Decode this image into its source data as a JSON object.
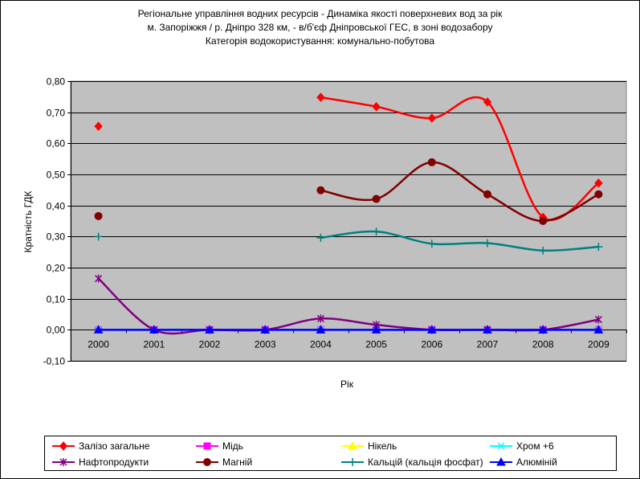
{
  "title_lines": [
    "Регіональне управління водних ресурсів - Динаміка якості поверхневих вод за рік",
    "м. Запоріжжя / р. Дніпро 328 км, - в/б'єф Дніпровської ГЕС, в зоні водозабору",
    "Категорія водокористування: комунально-побутова"
  ],
  "chart_data": {
    "type": "line",
    "title": "Регіональне управління водних ресурсів - Динаміка якості поверхневих вод за рік м. Запоріжжя / р. Дніпро 328 км, - в/б'єф Дніпровської ГЕС, в зоні водозабору Категорія водокористування: комунально-побутова",
    "xlabel": "Рік",
    "ylabel": "Кратність ГДК",
    "categories": [
      "2000",
      "2001",
      "2002",
      "2003",
      "2004",
      "2005",
      "2006",
      "2007",
      "2008",
      "2009"
    ],
    "ylim": [
      -0.1,
      0.8
    ],
    "yticks": [
      -0.1,
      0.0,
      0.1,
      0.2,
      0.3,
      0.4,
      0.5,
      0.6,
      0.7,
      0.8
    ],
    "ytick_labels": [
      "-0,10",
      "0,00",
      "0,10",
      "0,20",
      "0,30",
      "0,40",
      "0,50",
      "0,60",
      "0,70",
      "0,80"
    ],
    "grid": true,
    "plot_background": "#c0c0c0",
    "smooth": true,
    "legend_position": "bottom",
    "series": [
      {
        "name": "Залізо загальне",
        "color": "#ff0000",
        "marker": "diamond",
        "values": [
          0.655,
          null,
          null,
          null,
          0.748,
          0.718,
          0.681,
          0.733,
          0.362,
          0.472
        ]
      },
      {
        "name": "Мідь",
        "color": "#ff00ff",
        "marker": "square",
        "values": [
          0.0,
          0.0,
          0.0,
          0.0,
          0.0,
          0.0,
          0.0,
          0.0,
          0.0,
          0.0
        ]
      },
      {
        "name": "Нікель",
        "color": "#ffff00",
        "marker": "triangle",
        "values": [
          0.0,
          null,
          null,
          null,
          null,
          0.0,
          null,
          null,
          null,
          null
        ]
      },
      {
        "name": "Хром +6",
        "color": "#00ffff",
        "marker": "x",
        "values": [
          0.0,
          0.0,
          0.0,
          0.0,
          0.0,
          0.0,
          0.0,
          0.0,
          0.0,
          0.0
        ]
      },
      {
        "name": "Нафтопродукти",
        "color": "#800080",
        "marker": "star",
        "values": [
          0.165,
          0.0,
          0.0,
          0.0,
          0.036,
          0.016,
          0.0,
          0.0,
          0.0,
          0.033
        ]
      },
      {
        "name": "Магній",
        "color": "#800000",
        "marker": "circle",
        "values": [
          0.366,
          null,
          null,
          null,
          0.449,
          0.421,
          0.539,
          0.436,
          0.35,
          0.436
        ]
      },
      {
        "name": "Кальцій (кальція фосфат)",
        "color": "#008080",
        "marker": "plus",
        "values": [
          0.3,
          null,
          null,
          null,
          0.296,
          0.316,
          0.277,
          0.279,
          0.255,
          0.267
        ]
      },
      {
        "name": "Алюміній",
        "color": "#0000ff",
        "marker": "triangle",
        "values": [
          0.0,
          0.0,
          0.0,
          0.0,
          0.0,
          0.0,
          0.0,
          0.0,
          0.0,
          0.0
        ]
      }
    ]
  }
}
